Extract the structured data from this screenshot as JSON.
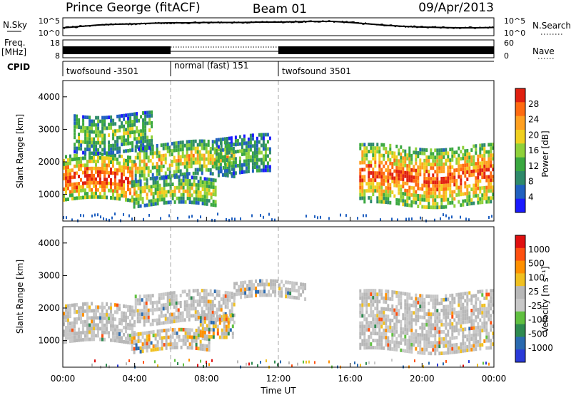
{
  "header": {
    "station": "Prince George (fitACF)",
    "beam": "Beam 01",
    "date": "09/Apr/2013"
  },
  "colors": {
    "power_scale": [
      "#1a1aff",
      "#2060c0",
      "#2e8a6a",
      "#3aa840",
      "#8fd13a",
      "#f0d020",
      "#ffa020",
      "#ff6a10",
      "#e02010"
    ],
    "velocity_scale": [
      "#2a3ad8",
      "#2a6ab0",
      "#2e8a50",
      "#60c040",
      "#c8c8c8",
      "#b8b8b8",
      "#f0c020",
      "#ff9000",
      "#ff5010",
      "#e01010"
    ]
  },
  "chart_data": [
    {
      "type": "line",
      "panel": "noise",
      "left_label": "N.Sky",
      "right_label": "N.Search",
      "left_ticks": [
        "10^5",
        "10^0"
      ],
      "right_ticks": [
        "10^5",
        "10^0"
      ],
      "x": [
        0,
        1,
        2,
        3,
        4,
        5,
        6,
        7,
        8,
        9,
        10,
        11,
        12,
        13,
        14,
        15,
        16,
        17,
        18,
        19,
        20,
        21,
        22,
        23,
        24
      ],
      "series": [
        {
          "values": [
            2.2,
            2.6,
            3.0,
            3.2,
            3.3,
            3.5,
            3.6,
            3.6,
            3.7,
            3.7,
            3.7,
            3.8,
            3.8,
            3.9,
            4.0,
            4.0,
            3.7,
            3.3,
            2.9,
            2.6,
            2.4,
            2.3,
            2.2,
            2.2,
            2.3
          ]
        }
      ]
    },
    {
      "type": "line",
      "panel": "frequency",
      "left_label": "Freq.",
      "left_unit": "[MHz]",
      "right_label": "Nave",
      "left_ticks": [
        "18",
        "8"
      ],
      "right_ticks": [
        "60",
        "0"
      ],
      "cpid_label": "CPID",
      "segments": [
        {
          "start": 0,
          "end": 6,
          "label": "twofsound -3501"
        },
        {
          "start": 6,
          "end": 12,
          "label": "normal (fast) 151"
        },
        {
          "start": 12,
          "end": 24,
          "label": "twofsound 3501"
        }
      ]
    },
    {
      "type": "heatmap",
      "panel": "power",
      "ylabel": "Slant Range [km]",
      "ylim": [
        180,
        4500
      ],
      "yticks": [
        1000,
        2000,
        3000,
        4000
      ],
      "xlim": [
        0,
        24
      ],
      "colorbar_label": "Power [dB]",
      "colorbar_ticks": [
        "28",
        "24",
        "20",
        "16",
        "12",
        "8",
        "4"
      ],
      "echo_bands": [
        {
          "t0": 0,
          "t1": 4.0,
          "r0": 800,
          "r1": 2200,
          "level": 0.85
        },
        {
          "t0": 4.0,
          "t1": 9.5,
          "r0": 1600,
          "r1": 2600,
          "level": 0.6
        },
        {
          "t0": 3.8,
          "t1": 8.5,
          "r0": 700,
          "r1": 1500,
          "level": 0.55
        },
        {
          "t0": 0.6,
          "t1": 5.0,
          "r0": 2400,
          "r1": 3500,
          "level": 0.45
        },
        {
          "t0": 8.5,
          "t1": 11.5,
          "r0": 1600,
          "r1": 2800,
          "level": 0.35
        },
        {
          "t0": 16.5,
          "t1": 24,
          "r0": 700,
          "r1": 2500,
          "level": 0.8
        }
      ]
    },
    {
      "type": "heatmap",
      "panel": "velocity",
      "ylabel": "Slant Range [km]",
      "xlabel": "Time UT",
      "ylim": [
        180,
        4500
      ],
      "yticks": [
        1000,
        2000,
        3000,
        4000
      ],
      "xlim": [
        0,
        24
      ],
      "xticks": [
        "00:00",
        "04:00",
        "08:00",
        "12:00",
        "16:00",
        "20:00",
        "00:00"
      ],
      "colorbar_label": "Velocity [m s⁻¹]",
      "colorbar_ticks": [
        "1000",
        "500",
        "100",
        "25",
        "-25",
        "-100",
        "-500",
        "-1000"
      ],
      "echo_bands": [
        {
          "t0": 0,
          "t1": 4.0,
          "r0": 900,
          "r1": 2100,
          "level": 0.5
        },
        {
          "t0": 4.0,
          "t1": 9.5,
          "r0": 1600,
          "r1": 2500,
          "level": 0.5
        },
        {
          "t0": 3.8,
          "t1": 8.2,
          "r0": 700,
          "r1": 1300,
          "level": 0.75
        },
        {
          "t0": 7.5,
          "t1": 9.5,
          "r0": 1200,
          "r1": 1900,
          "level": 0.85
        },
        {
          "t0": 9.5,
          "t1": 13.5,
          "r0": 2300,
          "r1": 2800,
          "level": 0.5
        },
        {
          "t0": 16.5,
          "t1": 24,
          "r0": 700,
          "r1": 2500,
          "level": 0.5
        }
      ]
    }
  ]
}
